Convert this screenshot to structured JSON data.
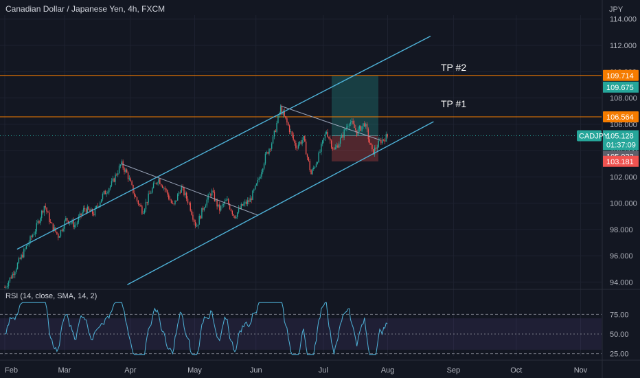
{
  "chart_data": {
    "type": "candlestick",
    "title": "Canadian Dollar / Japanese Yen, 4h, FXCM",
    "currency": "JPY",
    "y_ticks": [
      94.0,
      96.0,
      98.0,
      100.0,
      102.0,
      104.0,
      106.0,
      108.0,
      110.0,
      112.0,
      114.0
    ],
    "y_tick_labels": [
      "94.000",
      "96.000",
      "98.000",
      "100.000",
      "102.000",
      "104.000",
      "106.000",
      "108.000",
      "110.000",
      "112.000",
      "114.000"
    ],
    "ylim": [
      93.5,
      114.3
    ],
    "x_labels": [
      "Feb",
      "Mar",
      "Apr",
      "May",
      "Jun",
      "Jul",
      "Aug",
      "Sep",
      "Oct",
      "Nov"
    ],
    "price_path": [
      [
        0.0,
        93.6
      ],
      [
        0.5,
        94.6
      ],
      [
        1.2,
        96.2
      ],
      [
        2.0,
        98.0
      ],
      [
        2.6,
        99.9
      ],
      [
        3.0,
        98.4
      ],
      [
        3.5,
        97.5
      ],
      [
        4.0,
        98.8
      ],
      [
        4.6,
        98.3
      ],
      [
        5.2,
        99.6
      ],
      [
        5.8,
        99.2
      ],
      [
        6.4,
        100.6
      ],
      [
        7.0,
        101.5
      ],
      [
        7.6,
        103.0
      ],
      [
        8.0,
        102.2
      ],
      [
        8.5,
        100.5
      ],
      [
        9.0,
        99.4
      ],
      [
        9.5,
        100.8
      ],
      [
        10.0,
        101.9
      ],
      [
        10.5,
        101.0
      ],
      [
        11.0,
        99.7
      ],
      [
        11.5,
        101.2
      ],
      [
        12.0,
        100.1
      ],
      [
        12.5,
        98.2
      ],
      [
        13.0,
        99.8
      ],
      [
        13.5,
        100.9
      ],
      [
        14.0,
        99.5
      ],
      [
        14.5,
        100.2
      ],
      [
        15.0,
        99.0
      ],
      [
        15.5,
        99.8
      ],
      [
        16.0,
        100.2
      ],
      [
        16.5,
        101.5
      ],
      [
        17.0,
        103.5
      ],
      [
        17.5,
        104.8
      ],
      [
        18.0,
        107.2
      ],
      [
        18.5,
        105.9
      ],
      [
        19.0,
        104.3
      ],
      [
        19.5,
        104.9
      ],
      [
        20.0,
        102.2
      ],
      [
        20.5,
        103.6
      ],
      [
        21.0,
        105.5
      ],
      [
        21.5,
        104.0
      ],
      [
        22.0,
        105.0
      ],
      [
        22.5,
        106.3
      ],
      [
        23.0,
        105.4
      ],
      [
        23.5,
        106.1
      ],
      [
        24.0,
        103.8
      ],
      [
        24.5,
        104.7
      ],
      [
        25.0,
        105.1
      ]
    ],
    "price_path_x_unit": "week",
    "price_path_x_origin": "Feb",
    "channel": {
      "upper": [
        [
          0.8,
          96.5
        ],
        [
          27.8,
          112.7
        ]
      ],
      "lower": [
        [
          8.0,
          93.8
        ],
        [
          28.0,
          106.2
        ]
      ],
      "color": "#4fb3d9"
    },
    "trendlines": [
      {
        "from": [
          7.6,
          103.0
        ],
        "to": [
          16.5,
          99.1
        ]
      },
      {
        "from": [
          18.0,
          107.4
        ],
        "to": [
          24.5,
          104.8
        ]
      }
    ],
    "levels": [
      {
        "name": "TP #2",
        "value": 109.714,
        "tag": "109.714",
        "color": "#f57c00"
      },
      {
        "name": "TP #1",
        "value": 106.564,
        "tag": "106.564",
        "color": "#f57c00"
      }
    ],
    "position": {
      "entry": 105.128,
      "target": 109.675,
      "stop": 103.181,
      "target_tag": "109.675",
      "stop_tag": "103.181",
      "profit_color": "#26a69a",
      "loss_color": "#ef5350"
    },
    "current": {
      "symbol": "CADJPY",
      "price": "105.128",
      "countdown": "01:37:09",
      "secondary": "105.022",
      "color": "#26a69a"
    },
    "rsi": {
      "label": "RSI (14, close, SMA, 14, 2)",
      "levels": [
        25,
        50,
        75
      ],
      "level_labels": [
        "25.00",
        "50.00",
        "75.00"
      ],
      "ylim": [
        22,
        92
      ],
      "band": [
        30,
        70
      ],
      "color": "#4fb3d9"
    }
  },
  "colors": {
    "background": "#131722",
    "grid": "#1e2230",
    "up": "#26a69a",
    "down": "#ef5350",
    "wick": "#787b86",
    "text": "#d1d4dc"
  }
}
